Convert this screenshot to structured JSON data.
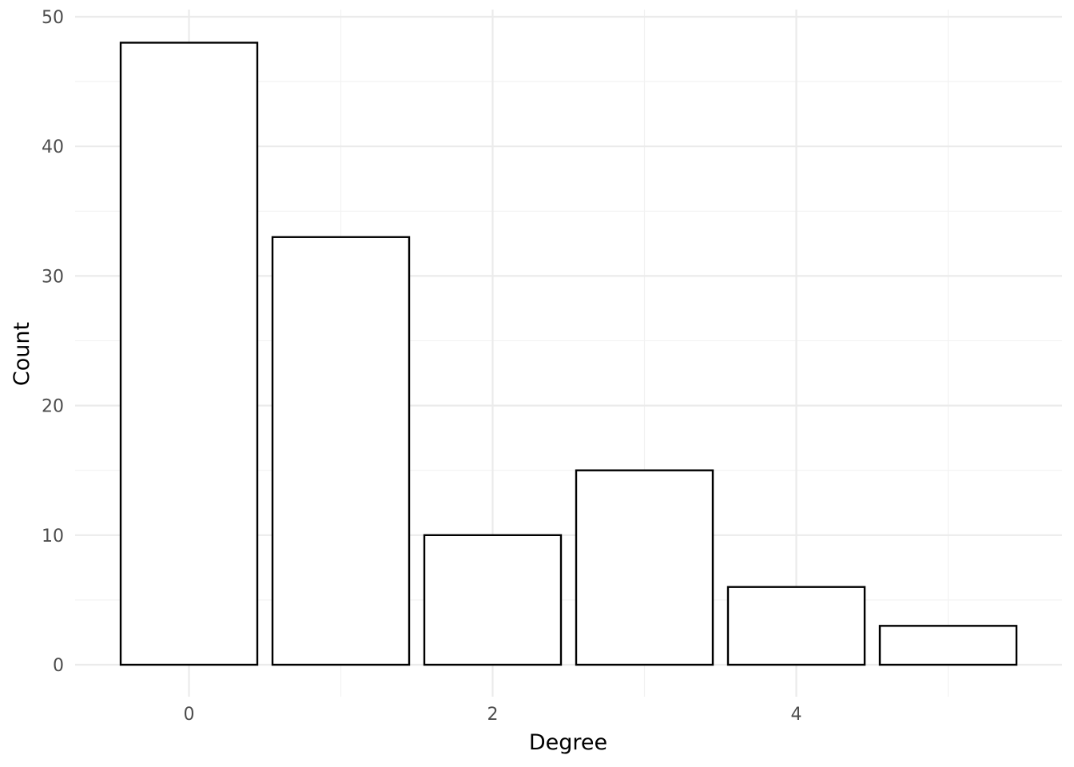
{
  "chart_data": {
    "type": "bar",
    "title": "",
    "xlabel": "Degree",
    "ylabel": "Count",
    "x": [
      0,
      1,
      2,
      3,
      4,
      5
    ],
    "values": [
      48,
      33,
      10,
      15,
      6,
      3
    ],
    "xlim": [
      -0.75,
      5.75
    ],
    "ylim": [
      0,
      50
    ],
    "x_ticks": [
      0,
      2,
      4
    ],
    "x_tick_labels": [
      "0",
      "2",
      "4"
    ],
    "y_ticks": [
      0,
      10,
      20,
      30,
      40,
      50
    ],
    "y_tick_labels": [
      "0",
      "10",
      "20",
      "30",
      "40",
      "50"
    ],
    "grid": true,
    "legend": "none",
    "bar_fill": "#ffffff",
    "bar_outline": "#000000",
    "grid_color": "#ebebeb"
  }
}
